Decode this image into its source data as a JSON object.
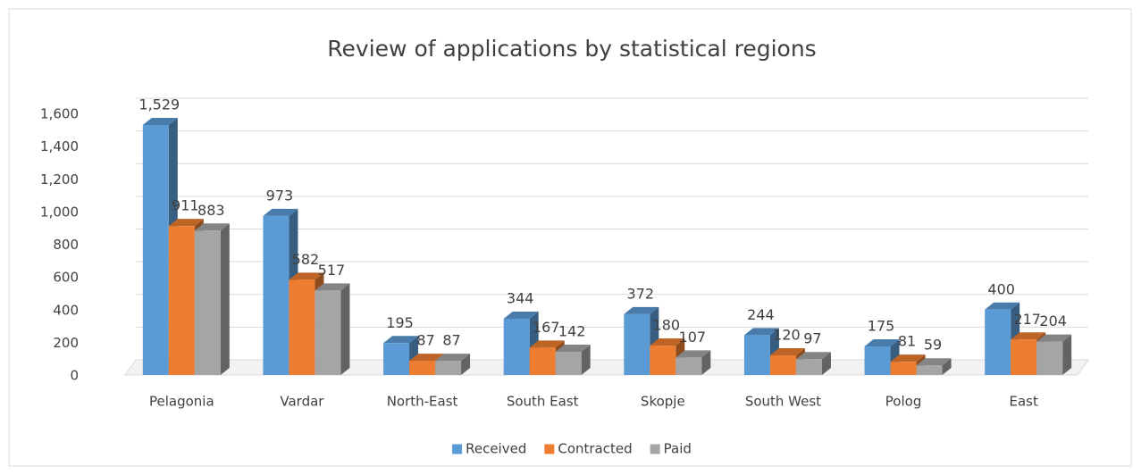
{
  "chart_data": {
    "type": "bar3d",
    "title": "Review of applications by statistical regions",
    "categories": [
      "Pelagonia",
      "Vardar",
      "North-East",
      "South East",
      "Skopje",
      "South West",
      "Polog",
      "East"
    ],
    "series": [
      {
        "name": "Received",
        "color": "#5b9bd5",
        "values": [
          1529,
          973,
          195,
          344,
          372,
          244,
          175,
          400
        ],
        "value_labels": [
          "1,529",
          "973",
          "195",
          "344",
          "372",
          "244",
          "175",
          "400"
        ]
      },
      {
        "name": "Contracted",
        "color": "#ed7d31",
        "values": [
          911,
          582,
          87,
          167,
          180,
          120,
          81,
          217
        ]
      },
      {
        "name": "Paid",
        "color": "#a5a5a5",
        "values": [
          883,
          517,
          87,
          142,
          107,
          97,
          59,
          204
        ]
      }
    ],
    "ylim": [
      0,
      1600
    ],
    "yticks": [
      0,
      200,
      400,
      600,
      800,
      {
        "value": 1000,
        "label": "1,000"
      },
      {
        "value": 1200,
        "label": "1,200"
      },
      {
        "value": 1400,
        "label": "1,400"
      },
      {
        "value": 1600,
        "label": "1,600"
      }
    ],
    "grid": true,
    "legend": "bottom"
  }
}
